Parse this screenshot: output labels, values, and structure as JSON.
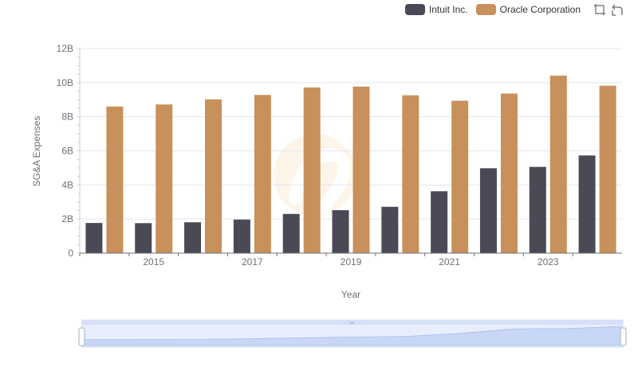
{
  "legend": {
    "items": [
      {
        "label": "Intuit Inc.",
        "color": "#4a4a56"
      },
      {
        "label": "Oracle Corporation",
        "color": "#c8905a"
      }
    ]
  },
  "toolbar": {
    "icons": [
      "zoom-select-icon",
      "restore-icon"
    ]
  },
  "chart_data": {
    "type": "bar",
    "title": "",
    "xlabel": "Year",
    "ylabel": "SG&A Expenses",
    "ylim": [
      0,
      12
    ],
    "yticks": [
      "0",
      "2B",
      "4B",
      "6B",
      "8B",
      "10B",
      "12B"
    ],
    "categories": [
      "2014",
      "2015",
      "2016",
      "2017",
      "2018",
      "2019",
      "2020",
      "2021",
      "2022",
      "2023",
      "2024"
    ],
    "xticks": [
      "2015",
      "2017",
      "2019",
      "2021",
      "2023"
    ],
    "grid": true,
    "legend_position": "top-right",
    "series": [
      {
        "name": "Intuit Inc.",
        "color": "#4a4a56",
        "values": [
          1.77,
          1.76,
          1.81,
          1.97,
          2.3,
          2.52,
          2.72,
          3.63,
          4.98,
          5.06,
          5.73
        ]
      },
      {
        "name": "Oracle Corporation",
        "color": "#c8905a",
        "values": [
          8.6,
          8.72,
          9.02,
          9.28,
          9.72,
          9.77,
          9.26,
          8.94,
          9.36,
          10.41,
          9.82
        ]
      }
    ],
    "data_zoom": {
      "range": [
        0,
        100
      ]
    }
  }
}
